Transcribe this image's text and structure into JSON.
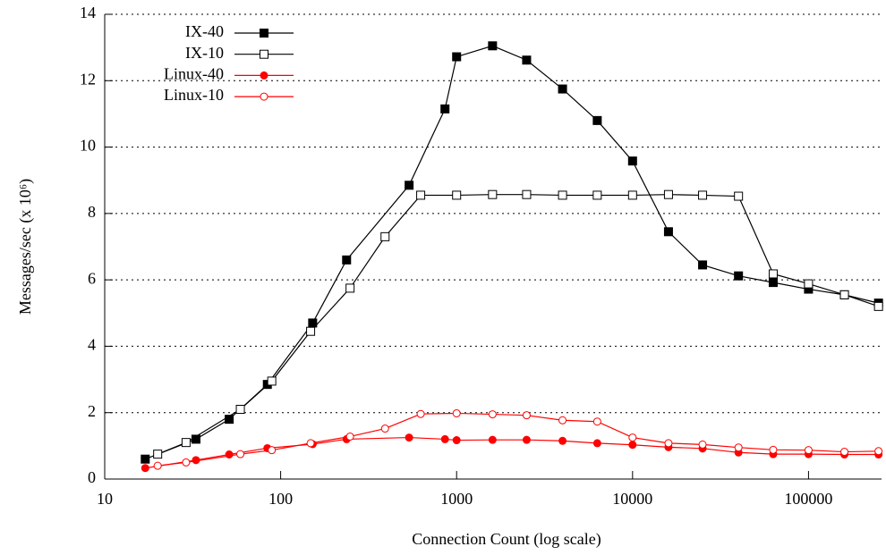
{
  "chart_data": {
    "type": "line",
    "x_label": "Connection Count (log scale)",
    "y_label": "Messages/sec (x 10⁶)",
    "xscale": "log",
    "xlim": [
      10,
      260000
    ],
    "xticks": [
      10,
      100,
      1000,
      10000,
      100000
    ],
    "ylim": [
      0,
      14
    ],
    "yticks": [
      0,
      2,
      4,
      6,
      8,
      10,
      12,
      14
    ],
    "grid": true,
    "legend": "top-left",
    "series": [
      {
        "name": "IX-40",
        "color": "#000000",
        "marker": "square",
        "filled": true,
        "x": [
          17,
          33,
          51,
          84,
          152,
          237,
          537,
          859,
          1000,
          1600,
          2500,
          4000,
          6300,
          10000,
          16000,
          25000,
          40000,
          63000,
          100000,
          160000,
          250000
        ],
        "values": [
          0.6,
          1.2,
          1.8,
          2.85,
          4.7,
          6.6,
          8.85,
          11.15,
          12.72,
          13.05,
          12.62,
          11.75,
          10.8,
          9.58,
          7.45,
          6.45,
          6.12,
          5.92,
          5.72,
          5.55,
          5.3
        ]
      },
      {
        "name": "IX-10",
        "color": "#000000",
        "marker": "square",
        "filled": false,
        "x": [
          20,
          29,
          59,
          89,
          148,
          248,
          392,
          625,
          1000,
          1600,
          2500,
          4000,
          6300,
          10000,
          16000,
          25000,
          40000,
          63000,
          100000,
          160000,
          250000
        ],
        "values": [
          0.75,
          1.1,
          2.1,
          2.95,
          4.45,
          5.75,
          7.3,
          8.55,
          8.55,
          8.57,
          8.57,
          8.55,
          8.55,
          8.55,
          8.57,
          8.55,
          8.52,
          6.18,
          5.88,
          5.55,
          5.2
        ]
      },
      {
        "name": "Linux-40",
        "color": "#ff0000",
        "marker": "circle",
        "filled": true,
        "x": [
          17,
          33,
          51,
          84,
          152,
          237,
          537,
          859,
          1000,
          1600,
          2500,
          4000,
          6300,
          10000,
          16000,
          25000,
          40000,
          63000,
          100000,
          160000,
          250000
        ],
        "values": [
          0.33,
          0.57,
          0.74,
          0.93,
          1.05,
          1.2,
          1.25,
          1.2,
          1.17,
          1.18,
          1.18,
          1.15,
          1.08,
          1.03,
          0.96,
          0.92,
          0.8,
          0.75,
          0.75,
          0.74,
          0.74
        ]
      },
      {
        "name": "Linux-10",
        "color": "#ff0000",
        "marker": "circle",
        "filled": false,
        "x": [
          20,
          29,
          59,
          89,
          148,
          248,
          392,
          625,
          1000,
          1600,
          2500,
          4000,
          6300,
          10000,
          16000,
          25000,
          40000,
          63000,
          100000,
          160000,
          250000
        ],
        "values": [
          0.4,
          0.5,
          0.75,
          0.87,
          1.08,
          1.28,
          1.52,
          1.96,
          1.98,
          1.95,
          1.92,
          1.77,
          1.73,
          1.25,
          1.08,
          1.04,
          0.95,
          0.88,
          0.87,
          0.82,
          0.84
        ]
      }
    ]
  }
}
